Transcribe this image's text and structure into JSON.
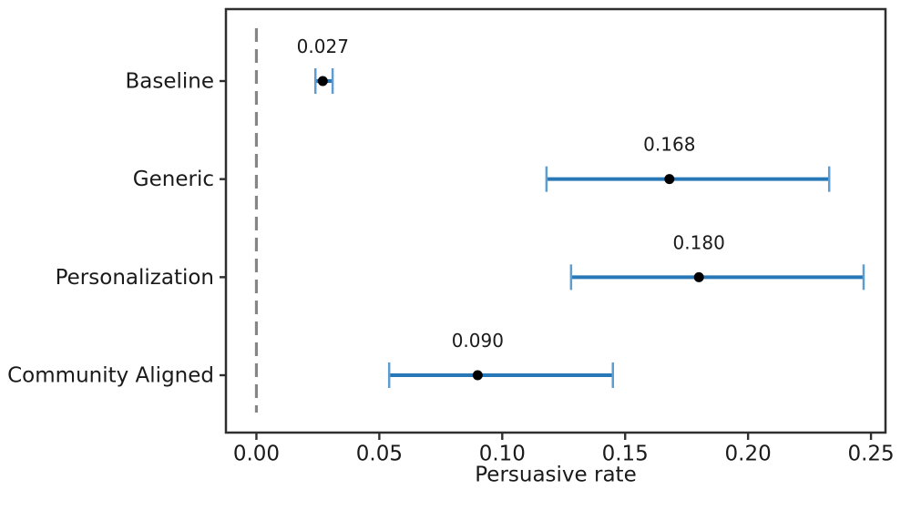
{
  "chart_data": {
    "type": "scatter",
    "subtype": "horizontal-errorbar",
    "title": "",
    "xlabel": "Persuasive rate",
    "ylabel": "",
    "categories": [
      "Baseline",
      "Generic",
      "Personalization",
      "Community Aligned"
    ],
    "values": [
      0.027,
      0.168,
      0.18,
      0.09
    ],
    "ci_low": [
      0.024,
      0.118,
      0.128,
      0.054
    ],
    "ci_high": [
      0.031,
      0.233,
      0.247,
      0.145
    ],
    "value_labels": [
      "0.027",
      "0.168",
      "0.180",
      "0.090"
    ],
    "x_ticks": [
      0.0,
      0.05,
      0.1,
      0.15,
      0.2,
      0.25
    ],
    "x_tick_labels": [
      "0.00",
      "0.05",
      "0.10",
      "0.15",
      "0.20",
      "0.25"
    ],
    "xlim": [
      -0.0124,
      0.2559
    ],
    "reference_line_x": 0.0,
    "grid": false,
    "legend": null,
    "colors": {
      "errorbar_line": "#2878b8",
      "errorbar_cap": "#5f9dd1",
      "point": "#000000",
      "reference_line": "#868686",
      "spine": "#2f2f2f",
      "text": "#1a1a1a"
    }
  }
}
